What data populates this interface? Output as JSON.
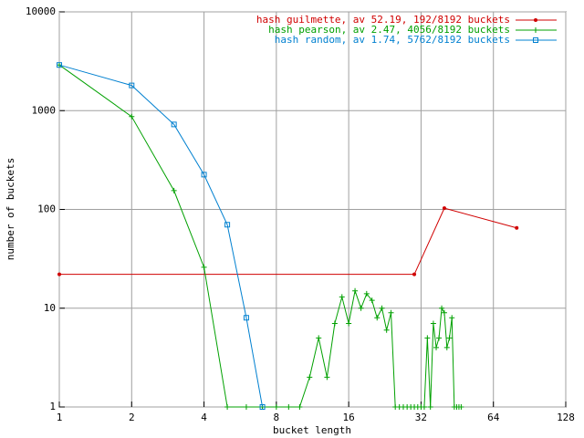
{
  "chart_data": {
    "type": "line",
    "xlabel": "bucket length",
    "ylabel": "number of buckets",
    "xscale": "log",
    "yscale": "log",
    "grid": true,
    "legend": "top-right",
    "xlim": [
      1,
      128
    ],
    "xticks": [
      1,
      2,
      4,
      8,
      16,
      32,
      64,
      128
    ],
    "ylim": [
      1,
      10000
    ],
    "yticks": [
      1,
      10,
      100,
      1000,
      10000
    ],
    "series": [
      {
        "name": "hash guilmette, av 52.19, 192/8192 buckets",
        "color": "#d00000",
        "marker": "dot",
        "x": [
          1,
          30,
          40,
          80
        ],
        "values": [
          22,
          22,
          103,
          65
        ]
      },
      {
        "name": "hash pearson, av 2.47, 4056/8192 buckets",
        "color": "#00a000",
        "marker": "plus",
        "x": [
          1,
          2,
          3,
          4,
          5,
          6,
          7,
          8,
          9,
          10,
          11,
          12,
          13,
          14,
          15,
          16,
          17,
          18,
          19,
          20,
          21,
          22,
          23,
          24,
          25,
          26,
          27,
          28,
          29,
          30,
          31,
          32,
          33,
          34,
          35,
          36,
          37,
          38,
          39,
          40,
          41,
          42,
          43,
          44,
          45,
          46,
          47
        ],
        "values": [
          2900,
          870,
          155,
          26,
          1,
          1,
          1,
          1,
          1,
          1,
          2,
          5,
          2,
          7,
          13,
          7,
          15,
          10,
          14,
          12,
          8,
          10,
          6,
          9,
          1,
          1,
          1,
          1,
          1,
          1,
          1,
          1,
          1,
          5,
          1,
          7,
          4,
          5,
          10,
          9,
          4,
          5,
          8,
          1,
          1,
          1,
          1
        ]
      },
      {
        "name": "hash random, av 1.74, 5762/8192 buckets",
        "color": "#0080d0",
        "marker": "square",
        "x": [
          1,
          2,
          3,
          4,
          5,
          6,
          7
        ],
        "values": [
          2900,
          1800,
          725,
          225,
          70,
          8,
          1
        ]
      }
    ]
  }
}
